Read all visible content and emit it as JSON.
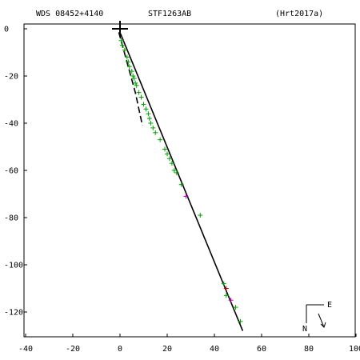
{
  "header": {
    "left": "WDS 08452+4140",
    "center": "STF1263AB",
    "right": "(Hrt2017a)"
  },
  "compass": {
    "east": "E",
    "north": "N"
  },
  "chart_data": {
    "type": "scatter",
    "title": "STF1263AB",
    "xlabel": "",
    "ylabel": "",
    "xlim": [
      -40,
      100
    ],
    "ylim": [
      -130,
      0
    ],
    "x_ticks": [
      -40,
      -20,
      0,
      20,
      40,
      60,
      80,
      100
    ],
    "y_ticks": [
      0,
      -20,
      -40,
      -60,
      -80,
      -100,
      -120
    ],
    "grid": false,
    "origin_marker": {
      "x": 0,
      "y": 0
    },
    "orbit_solid": [
      [
        0.2,
        -2
      ],
      [
        52,
        -128
      ]
    ],
    "orbit_dashed": [
      [
        -0.5,
        -1.5
      ],
      [
        6.5,
        -27
      ],
      [
        9.5,
        -41
      ]
    ],
    "series": [
      {
        "color": "#00a000",
        "points": [
          [
            0.5,
            -5
          ],
          [
            1,
            -7
          ],
          [
            2,
            -9
          ],
          [
            3,
            -12
          ],
          [
            3.5,
            -14
          ],
          [
            4,
            -16
          ],
          [
            5,
            -18
          ],
          [
            5.5,
            -20
          ],
          [
            6,
            -21
          ],
          [
            6.5,
            -23
          ],
          [
            7,
            -24
          ],
          [
            8,
            -27
          ],
          [
            9,
            -29
          ],
          [
            10,
            -32
          ],
          [
            11,
            -34
          ],
          [
            12,
            -36
          ],
          [
            12.5,
            -38
          ],
          [
            13,
            -40
          ],
          [
            14,
            -42
          ],
          [
            15,
            -44
          ],
          [
            17,
            -47
          ],
          [
            19,
            -51
          ],
          [
            20,
            -53
          ],
          [
            21,
            -55
          ],
          [
            22,
            -57
          ],
          [
            23,
            -60
          ],
          [
            24,
            -61
          ],
          [
            26,
            -66
          ],
          [
            34,
            -79
          ],
          [
            44,
            -108
          ],
          [
            45,
            -113
          ],
          [
            49,
            -118
          ],
          [
            51,
            -124
          ]
        ]
      },
      {
        "color": "#c000c0",
        "points": [
          [
            28,
            -71
          ],
          [
            47,
            -115
          ]
        ]
      },
      {
        "color": "#c00000",
        "points": [
          [
            45,
            -110
          ]
        ]
      }
    ]
  }
}
